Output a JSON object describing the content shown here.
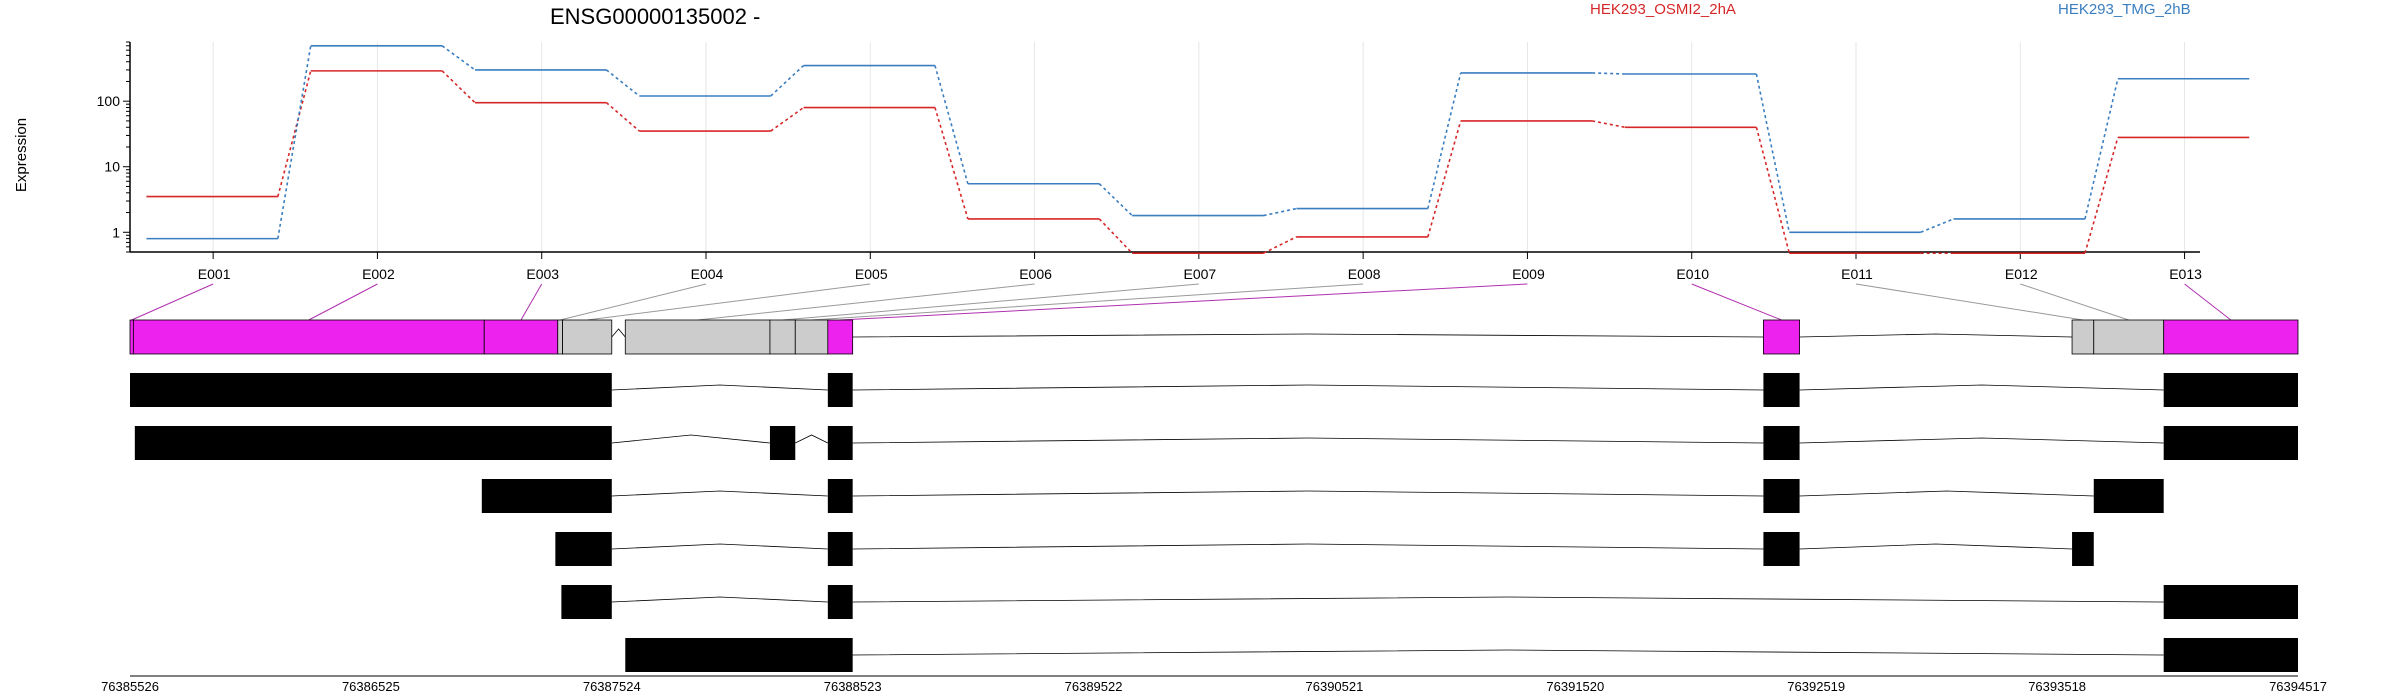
{
  "chart_data": {
    "type": "line",
    "title": "ENSG00000135002 -",
    "ylabel": "Expression",
    "yscale": "log",
    "ylim": [
      0.5,
      800
    ],
    "yticks": [
      1,
      10,
      100
    ],
    "ytick_labels": [
      "1",
      "10",
      "100"
    ],
    "grid": true,
    "legend_position": "top",
    "categories": [
      "E001",
      "E002",
      "E003",
      "E004",
      "E005",
      "E006",
      "E007",
      "E008",
      "E009",
      "E010",
      "E011",
      "E012",
      "E013"
    ],
    "series": [
      {
        "name": "HEK293_OSMI2_2hA",
        "color": "#d62728",
        "values": [
          3.5,
          290,
          95,
          35,
          80,
          1.6,
          0.48,
          0.85,
          50,
          40,
          0.48,
          0.48,
          28
        ]
      },
      {
        "name": "HEK293_TMG_2hB",
        "color": "#3a7ec0",
        "values": [
          0.8,
          700,
          300,
          120,
          350,
          5.5,
          1.8,
          2.3,
          270,
          260,
          1.0,
          1.6,
          220
        ]
      }
    ],
    "gene_model": {
      "coordinates": [
        "76385526",
        "76386525",
        "76387524",
        "76388523",
        "76389522",
        "76390521",
        "76391520",
        "76392519",
        "76393518",
        "76394517"
      ],
      "coord_range": [
        76385526,
        76394517
      ],
      "exons": [
        {
          "label": "E001",
          "start": 76385526,
          "end": 76385540,
          "fill": "#ee22ee"
        },
        {
          "label": "E002",
          "start": 76385540,
          "end": 76386995,
          "fill": "#ee22ee"
        },
        {
          "label": "E003",
          "start": 76386995,
          "end": 76387300,
          "fill": "#ee22ee"
        },
        {
          "label": "E004",
          "start": 76387300,
          "end": 76387320,
          "fill": "#cccccc"
        },
        {
          "label": "E005",
          "start": 76387320,
          "end": 76387524,
          "fill": "#cccccc"
        },
        {
          "label": "E006",
          "start": 76387580,
          "end": 76388180,
          "fill": "#cccccc"
        },
        {
          "label": "E007",
          "start": 76388180,
          "end": 76388285,
          "fill": "#cccccc"
        },
        {
          "label": "E008",
          "start": 76388285,
          "end": 76388420,
          "fill": "#cccccc"
        },
        {
          "label": "E009",
          "start": 76388420,
          "end": 76388523,
          "fill": "#ee22ee"
        },
        {
          "label": "E010",
          "start": 76392300,
          "end": 76392450,
          "fill": "#ee22ee"
        },
        {
          "label": "E011",
          "start": 76393580,
          "end": 76393670,
          "fill": "#cccccc"
        },
        {
          "label": "E012",
          "start": 76393670,
          "end": 76393960,
          "fill": "#cccccc"
        },
        {
          "label": "E013",
          "start": 76393960,
          "end": 76394517,
          "fill": "#ee22ee"
        }
      ],
      "transcripts": [
        {
          "exons": [
            [
              76385526,
              76387524
            ],
            [
              76388420,
              76388523
            ],
            [
              76392300,
              76392450
            ],
            [
              76393960,
              76394517
            ]
          ]
        },
        {
          "exons": [
            [
              76385546,
              76387524
            ],
            [
              76388180,
              76388285
            ],
            [
              76388420,
              76388523
            ],
            [
              76392300,
              76392450
            ],
            [
              76393960,
              76394517
            ]
          ]
        },
        {
          "exons": [
            [
              76386985,
              76387524
            ],
            [
              76388420,
              76388523
            ],
            [
              76392300,
              76392450
            ],
            [
              76393670,
              76393960
            ]
          ]
        },
        {
          "exons": [
            [
              76387290,
              76387524
            ],
            [
              76388420,
              76388523
            ],
            [
              76392300,
              76392450
            ],
            [
              76393580,
              76393670
            ]
          ]
        },
        {
          "exons": [
            [
              76387315,
              76387524
            ],
            [
              76388420,
              76388523
            ],
            [
              76393960,
              76394517
            ]
          ]
        },
        {
          "exons": [
            [
              76387580,
              76388523
            ],
            [
              76393960,
              76394517
            ]
          ]
        }
      ]
    }
  }
}
